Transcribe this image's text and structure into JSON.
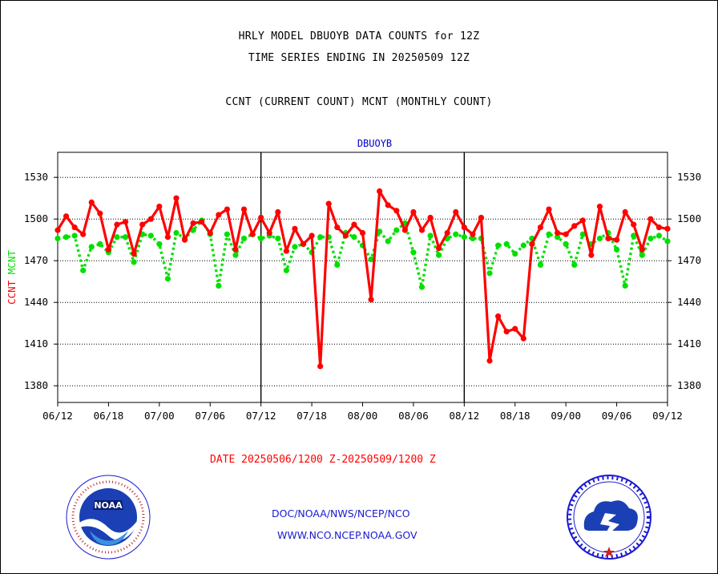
{
  "header": {
    "line1": "HRLY MODEL DBUOYB DATA COUNTS for 12Z",
    "line2": "TIME SERIES ENDING IN 20250509 12Z",
    "line3": "CCNT (CURRENT COUNT) MCNT (MONTHLY COUNT)"
  },
  "footer": {
    "date_range": "DATE 20250506/1200 Z-20250509/1200 Z",
    "org_path": "DOC/NOAA/NWS/NCEP/NCO",
    "website": "WWW.NCO.NCEP.NOAA.GOV"
  },
  "logos": {
    "left": {
      "icon": "noaa-logo",
      "text": "NOAA"
    },
    "right": {
      "icon": "national-weather-service-logo"
    }
  },
  "colors": {
    "ccnt": "#ff0000",
    "mcnt": "#00e000",
    "plot_title": "#0000cc",
    "footer_text": "#1a1ad0"
  },
  "chart_data": {
    "type": "line",
    "title": "DBUOYB",
    "ylabel_parts": [
      "CCNT",
      "MCNT"
    ],
    "ylim": [
      1368,
      1548
    ],
    "yticks": [
      1380,
      1410,
      1440,
      1470,
      1500,
      1530
    ],
    "x_range": [
      0,
      72
    ],
    "xticks": [
      {
        "x": 0,
        "label": "06/12"
      },
      {
        "x": 6,
        "label": "06/18"
      },
      {
        "x": 12,
        "label": "07/00"
      },
      {
        "x": 18,
        "label": "07/06"
      },
      {
        "x": 24,
        "label": "07/12"
      },
      {
        "x": 30,
        "label": "07/18"
      },
      {
        "x": 36,
        "label": "08/00"
      },
      {
        "x": 42,
        "label": "08/06"
      },
      {
        "x": 48,
        "label": "08/12"
      },
      {
        "x": 54,
        "label": "08/18"
      },
      {
        "x": 60,
        "label": "09/00"
      },
      {
        "x": 66,
        "label": "09/06"
      },
      {
        "x": 72,
        "label": "09/12"
      }
    ],
    "day_dividers": [
      24,
      48
    ],
    "grid": true,
    "series": [
      {
        "name": "CCNT",
        "color": "#ff0000",
        "style": "solid",
        "x": [
          0,
          1,
          2,
          3,
          4,
          5,
          6,
          7,
          8,
          9,
          10,
          11,
          12,
          13,
          14,
          15,
          16,
          17,
          18,
          19,
          20,
          21,
          22,
          23,
          24,
          25,
          26,
          27,
          28,
          29,
          30,
          31,
          32,
          33,
          34,
          35,
          36,
          37,
          38,
          39,
          40,
          41,
          42,
          43,
          44,
          45,
          46,
          47,
          48,
          49,
          50,
          51,
          52,
          53,
          54,
          55,
          56,
          57,
          58,
          59,
          60,
          61,
          62,
          63,
          64,
          65,
          66,
          67,
          68,
          69,
          70,
          71,
          72
        ],
        "values": [
          1492,
          1502,
          1494,
          1489,
          1512,
          1504,
          1478,
          1496,
          1498,
          1475,
          1496,
          1500,
          1509,
          1487,
          1515,
          1485,
          1497,
          1498,
          1490,
          1503,
          1507,
          1478,
          1507,
          1489,
          1501,
          1490,
          1505,
          1477,
          1493,
          1482,
          1488,
          1394,
          1511,
          1494,
          1488,
          1496,
          1490,
          1442,
          1520,
          1510,
          1506,
          1492,
          1505,
          1492,
          1501,
          1479,
          1490,
          1505,
          1494,
          1489,
          1501,
          1398,
          1430,
          1419,
          1421,
          1414,
          1482,
          1494,
          1507,
          1490,
          1489,
          1495,
          1499,
          1474,
          1509,
          1486,
          1485,
          1505,
          1496,
          1478,
          1500,
          1494,
          1493
        ]
      },
      {
        "name": "MCNT",
        "color": "#00e000",
        "style": "dotted",
        "x": [
          0,
          1,
          2,
          3,
          4,
          5,
          6,
          7,
          8,
          9,
          10,
          11,
          12,
          13,
          14,
          15,
          16,
          17,
          18,
          19,
          20,
          21,
          22,
          23,
          24,
          25,
          26,
          27,
          28,
          29,
          30,
          31,
          32,
          33,
          34,
          35,
          36,
          37,
          38,
          39,
          40,
          41,
          42,
          43,
          44,
          45,
          46,
          47,
          48,
          49,
          50,
          51,
          52,
          53,
          54,
          55,
          56,
          57,
          58,
          59,
          60,
          61,
          62,
          63,
          64,
          65,
          66,
          67,
          68,
          69,
          70,
          71,
          72
        ],
        "values": [
          1486,
          1487,
          1488,
          1463,
          1480,
          1482,
          1476,
          1487,
          1487,
          1469,
          1489,
          1488,
          1482,
          1457,
          1490,
          1486,
          1492,
          1499,
          1489,
          1452,
          1489,
          1474,
          1486,
          1489,
          1486,
          1488,
          1486,
          1463,
          1480,
          1482,
          1476,
          1487,
          1487,
          1467,
          1490,
          1487,
          1481,
          1471,
          1491,
          1484,
          1492,
          1497,
          1476,
          1451,
          1488,
          1474,
          1486,
          1489,
          1487,
          1486,
          1486,
          1461,
          1481,
          1482,
          1475,
          1481,
          1486,
          1467,
          1489,
          1487,
          1482,
          1467,
          1489,
          1482,
          1486,
          1490,
          1478,
          1452,
          1488,
          1474,
          1486,
          1488,
          1484
        ]
      }
    ]
  }
}
